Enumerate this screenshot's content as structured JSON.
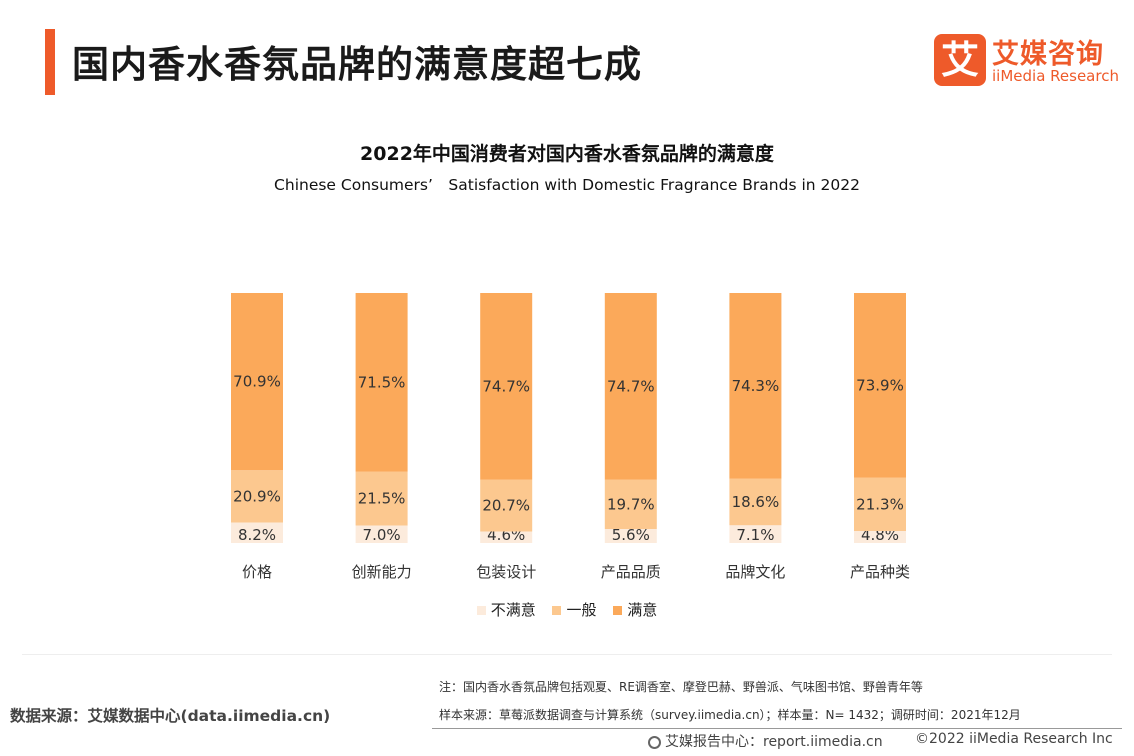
{
  "header": {
    "title": "国内香水香氛品牌的满意度超七成"
  },
  "logo": {
    "mark": "艾",
    "name_cn": "艾媒咨询",
    "name_en": "iiMedia Research"
  },
  "colors": {
    "accent": "#ee5a2a",
    "satisfied": "#fba95a",
    "neutral": "#fcc88f",
    "unsatisfied": "#fcebdc"
  },
  "chart_data": {
    "type": "bar",
    "stacked": true,
    "title": "2022年中国消费者对国内香水香氛品牌的满意度",
    "subtitle": "Chinese Consumers’　Satisfaction with Domestic Fragrance Brands in 2022",
    "categories": [
      "价格",
      "创新能力",
      "包装设计",
      "产品品质",
      "品牌文化",
      "产品种类"
    ],
    "series": [
      {
        "name": "不满意",
        "values": [
          8.2,
          7.0,
          4.6,
          5.6,
          7.1,
          4.8
        ],
        "labels": [
          "8.2%",
          "7.0%",
          "4.6%",
          "5.6%",
          "7.1%",
          "4.8%"
        ]
      },
      {
        "name": "一般",
        "values": [
          20.9,
          21.5,
          20.7,
          19.7,
          18.6,
          21.3
        ],
        "labels": [
          "20.9%",
          "21.5%",
          "20.7%",
          "19.7%",
          "18.6%",
          "21.3%"
        ]
      },
      {
        "name": "满意",
        "values": [
          70.9,
          71.5,
          74.7,
          74.7,
          74.3,
          73.9
        ],
        "labels": [
          "70.9%",
          "71.5%",
          "74.7%",
          "74.7%",
          "74.3%",
          "73.9%"
        ]
      }
    ],
    "ylim": [
      0,
      100
    ],
    "grid": false,
    "legend_position": "bottom"
  },
  "footer": {
    "note": "注：国内香水香氛品牌包括观夏、RE调香室、摩登巴赫、野兽派、气味图书馆、野兽青年等",
    "sample": "样本来源：草莓派数据调查与计算系统（survey.iimedia.cn）；样本量：N= 1432；调研时间：2021年12月",
    "source": "数据来源：艾媒数据中心(data.iimedia.cn)",
    "report_center": "艾媒报告中心：report.iimedia.cn",
    "copyright": "©2022  iiMedia Research  Inc"
  }
}
